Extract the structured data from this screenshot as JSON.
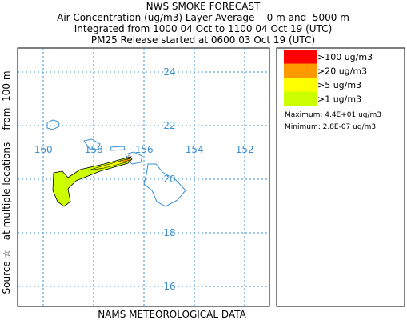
{
  "header": {
    "title": "NWS SMOKE FORECAST",
    "line1": "Air Concentration (ug/m3) Layer Average    0 m and  5000 m",
    "line2": "Integrated from 1000 04 Oct to 1100 04 Oct 19 (UTC)",
    "line3": "PM25 Release started at 0600 03 Oct 19 (UTC)"
  },
  "map": {
    "latitudes": [
      24,
      22,
      20,
      18,
      16
    ],
    "longitudes": [
      -160,
      -158,
      -156,
      -154,
      -152
    ],
    "side_label": "Source ☆   at multiple locations    from  100 m",
    "footer": "NAMS METEOROLOGICAL DATA"
  },
  "legend": {
    "entries": [
      {
        "label": ">100 ug/m3",
        "color": "#ff0000"
      },
      {
        "label": ">20 ug/m3",
        "color": "#ff9900"
      },
      {
        "label": ">5 ug/m3",
        "color": "#ffff00"
      },
      {
        "label": ">1 ug/m3",
        "color": "#ccff00"
      }
    ],
    "maximum": "Maximum: 4.4E+01 ug/m3",
    "minimum": "Minimum: 2.8E-07 ug/m3"
  }
}
